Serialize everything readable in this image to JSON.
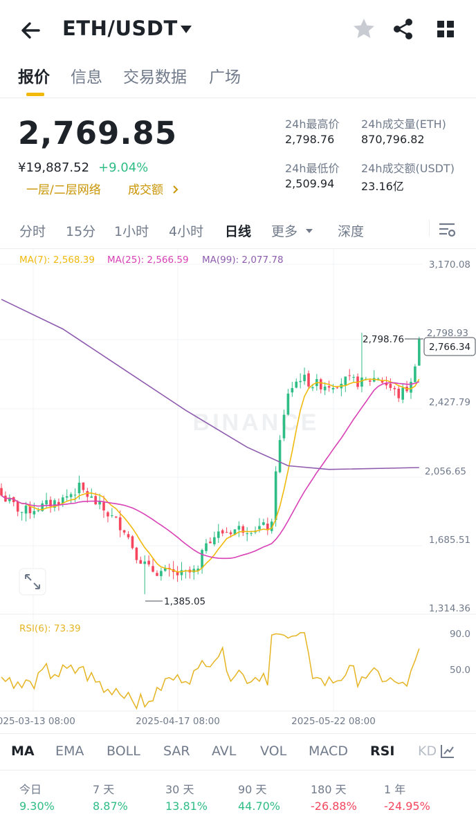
{
  "header": {
    "pair": "ETH/USDT"
  },
  "tabs": [
    "报价",
    "信息",
    "交易数据",
    "广场"
  ],
  "price": {
    "last": "2,769.85",
    "cny": "¥19,887.52",
    "change": "+9.04%",
    "link_network": "一层/二层网络",
    "link_volume": "成交额"
  },
  "stats": {
    "high_label": "24h最高价",
    "high_value": "2,798.76",
    "low_label": "24h最低价",
    "low_value": "2,509.94",
    "vol_eth_label": "24h成交量(ETH)",
    "vol_eth_value": "870,796.82",
    "vol_usdt_label": "24h成交额(USDT)",
    "vol_usdt_value": "23.16亿"
  },
  "intervals": [
    "分时",
    "15分",
    "1小时",
    "4小时",
    "日线",
    "更多",
    "深度"
  ],
  "chart_data": {
    "type": "candlestick",
    "ma_labels": [
      "MA(7): 2,568.39",
      "MA(25): 2,566.59",
      "MA(99): 2,077.78"
    ],
    "y_ticks": [
      "3,170.08",
      "2,798.93",
      "2,427.79",
      "2,056.65",
      "1,685.51",
      "1,314.36"
    ],
    "y_ticks_values": [
      3170.08,
      2798.93,
      2427.79,
      2056.65,
      1685.51,
      1314.36
    ],
    "ylim": [
      1314.36,
      3170.08
    ],
    "x_labels": [
      "2025-03-13 08:00",
      "2025-04-17 08:00",
      "2025-05-22 08:00"
    ],
    "high_marker": "2,798.76",
    "low_marker": "1,385.05",
    "current_price_tag": "2,766.34",
    "watermark": "BINANCE",
    "rsi_label": "RSI(6): 73.39",
    "rsi_ticks": [
      "90.0",
      "50.0"
    ],
    "colors": {
      "up": "#2ebd85",
      "down": "#f6465d",
      "ma7": "#f0b90b",
      "ma25": "#d940b5",
      "ma99": "#8e5cae",
      "rsi": "#e6b422"
    }
  },
  "indicators": [
    "MA",
    "EMA",
    "BOLL",
    "SAR",
    "AVL",
    "VOL",
    "MACD",
    "RSI",
    "KD"
  ],
  "performance": [
    {
      "label": "今日",
      "value": "9.30%",
      "color": "#2ebd85"
    },
    {
      "label": "7 天",
      "value": "8.87%",
      "color": "#2ebd85"
    },
    {
      "label": "30 天",
      "value": "13.81%",
      "color": "#2ebd85"
    },
    {
      "label": "90 天",
      "value": "44.70%",
      "color": "#2ebd85"
    },
    {
      "label": "180 天",
      "value": "-26.88%",
      "color": "#f6465d"
    },
    {
      "label": "1 年",
      "value": "-24.95%",
      "color": "#f6465d"
    }
  ]
}
